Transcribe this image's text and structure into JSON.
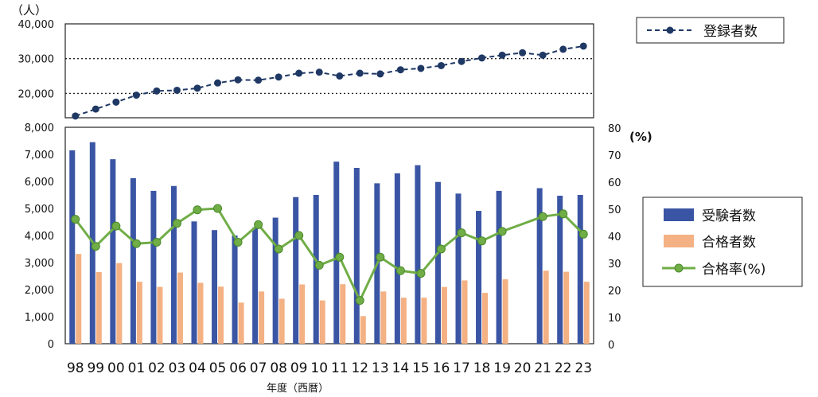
{
  "chart_data": [
    {
      "type": "line",
      "categories": [
        "98",
        "99",
        "00",
        "01",
        "02",
        "03",
        "04",
        "05",
        "06",
        "07",
        "08",
        "09",
        "10",
        "11",
        "12",
        "13",
        "14",
        "15",
        "16",
        "17",
        "18",
        "19",
        "20",
        "21",
        "22",
        "23"
      ],
      "series": [
        {
          "name": "登録者数",
          "values": [
            13500,
            15500,
            17500,
            19500,
            20700,
            20900,
            21500,
            23000,
            23900,
            23800,
            24700,
            25800,
            26100,
            25000,
            25800,
            25600,
            26800,
            27200,
            28000,
            29200,
            30200,
            31000,
            31700,
            31000,
            32700,
            33600
          ],
          "color": "#1f3864"
        }
      ],
      "ylabel": "（人）",
      "ylim": [
        13000,
        40000
      ],
      "yticks": [
        "20,000",
        "30,000",
        "40,000"
      ],
      "ytick_values": [
        20000,
        30000,
        40000
      ],
      "grid": true,
      "legend_position": "right"
    },
    {
      "type": "bar",
      "categories": [
        "98",
        "99",
        "00",
        "01",
        "02",
        "03",
        "04",
        "05",
        "06",
        "07",
        "08",
        "09",
        "10",
        "11",
        "12",
        "13",
        "14",
        "15",
        "16",
        "17",
        "18",
        "19",
        "20",
        "21",
        "22",
        "23"
      ],
      "series": [
        {
          "name": "受験者数",
          "kind": "bar",
          "axis": "left",
          "color": "#3a55a4",
          "values": [
            7150,
            7450,
            6820,
            6120,
            5650,
            5830,
            4520,
            4200,
            4000,
            4300,
            4660,
            5420,
            5500,
            6730,
            6500,
            5930,
            6300,
            6600,
            5980,
            5550,
            4910,
            5650,
            null,
            5750,
            5470,
            5500
          ]
        },
        {
          "name": "合格者数",
          "kind": "bar",
          "axis": "left",
          "color": "#f4b183",
          "values": [
            3320,
            2650,
            2980,
            2290,
            2100,
            2630,
            2250,
            2110,
            1520,
            1930,
            1660,
            2190,
            1600,
            2200,
            1020,
            1930,
            1700,
            1700,
            2100,
            2340,
            1880,
            2380,
            null,
            2700,
            2660,
            2290
          ]
        },
        {
          "name": "合格率(%)",
          "kind": "line",
          "axis": "right",
          "color": "#70ad47",
          "values": [
            46,
            36,
            43.5,
            37,
            37.5,
            44.5,
            49.5,
            50,
            37.5,
            44,
            35,
            40,
            29,
            32,
            16,
            32,
            27,
            26,
            35,
            41,
            38,
            41.5,
            null,
            47,
            48,
            40.5
          ]
        }
      ],
      "ylim": [
        0,
        8000
      ],
      "y2lim": [
        0,
        80
      ],
      "yticks": [
        "0",
        "1,000",
        "2,000",
        "3,000",
        "4,000",
        "5,000",
        "6,000",
        "7,000",
        "8,000"
      ],
      "y2ticks": [
        "0",
        "10",
        "20",
        "30",
        "40",
        "50",
        "60",
        "70",
        "80"
      ],
      "y2label": "(%)",
      "xlabel": "年度（西暦）",
      "legend_position": "right"
    }
  ]
}
